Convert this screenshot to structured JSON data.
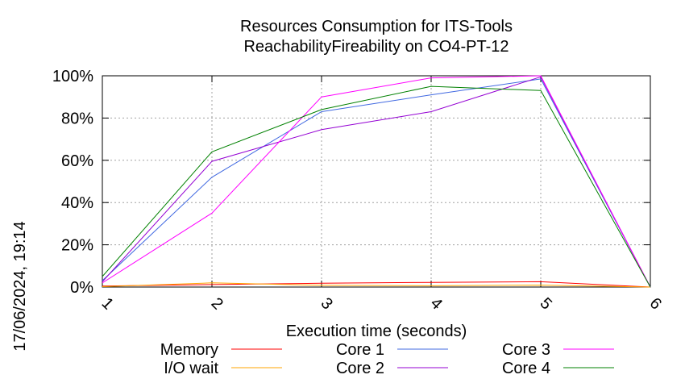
{
  "chart_data": {
    "type": "line",
    "title": "Resources Consumption for ITS-Tools",
    "subtitle": "ReachabilityFireability on CO4-PT-12",
    "xlabel": "Execution time (seconds)",
    "ylabel": "",
    "side_label": "17/06/2024, 19:14",
    "x": [
      1,
      2,
      3,
      4,
      5,
      6
    ],
    "xlim": [
      1,
      6
    ],
    "ylim": [
      0,
      100
    ],
    "x_ticks": [
      "1",
      "2",
      "3",
      "4",
      "5",
      "6"
    ],
    "y_ticks": [
      {
        "value": 0,
        "label": "0%"
      },
      {
        "value": 20,
        "label": "20%"
      },
      {
        "value": 40,
        "label": "40%"
      },
      {
        "value": 60,
        "label": "60%"
      },
      {
        "value": 80,
        "label": "80%"
      },
      {
        "value": 100,
        "label": "100%"
      }
    ],
    "grid": true,
    "legend_position": "bottom",
    "series": [
      {
        "name": "Memory",
        "color": "#ff0000",
        "values": [
          0.5,
          1.2,
          1.8,
          2.2,
          2.5,
          0.0
        ]
      },
      {
        "name": "I/O wait",
        "color": "#ffa500",
        "values": [
          0.2,
          2.0,
          0.8,
          0.6,
          0.9,
          0.0
        ]
      },
      {
        "name": "Core 1",
        "color": "#4169e1",
        "values": [
          3.0,
          52.0,
          83.0,
          91.0,
          98.5,
          0.0
        ]
      },
      {
        "name": "Core 2",
        "color": "#9400d3",
        "values": [
          2.5,
          59.5,
          74.5,
          83.0,
          99.5,
          0.0
        ]
      },
      {
        "name": "Core 3",
        "color": "#ff00ff",
        "values": [
          2.0,
          35.0,
          90.0,
          99.0,
          100.0,
          0.0
        ]
      },
      {
        "name": "Core 4",
        "color": "#008000",
        "values": [
          5.0,
          64.0,
          84.0,
          95.0,
          93.0,
          0.0
        ]
      }
    ]
  }
}
